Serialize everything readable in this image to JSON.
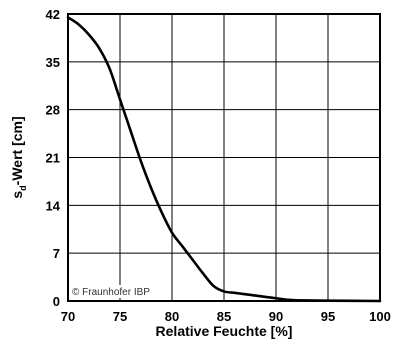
{
  "chart_data": {
    "type": "line",
    "xlabel": "Relative Feuchte [%]",
    "ylabel": {
      "main": "s",
      "sub": "d",
      "rest": "-Wert [cm]"
    },
    "xlim": [
      70,
      100
    ],
    "ylim": [
      0,
      42
    ],
    "xticks": [
      70,
      75,
      80,
      85,
      90,
      95,
      100
    ],
    "yticks": [
      0,
      7,
      14,
      21,
      28,
      35,
      42
    ],
    "grid": true,
    "annotation": "© Fraunhofer IBP",
    "series": [
      {
        "x": [
          70,
          71,
          72,
          73,
          74,
          75,
          76,
          77,
          78,
          79,
          80,
          81,
          82,
          83,
          84,
          85,
          86,
          87,
          88,
          89,
          90,
          91,
          92,
          95,
          100
        ],
        "y": [
          41.5,
          40.5,
          39.0,
          37.0,
          34.0,
          29.5,
          25.0,
          20.5,
          16.5,
          13.0,
          10.0,
          8.0,
          6.0,
          4.0,
          2.2,
          1.4,
          1.2,
          1.0,
          0.8,
          0.6,
          0.4,
          0.2,
          0.1,
          0.05,
          0.0
        ],
        "color": "#000000"
      }
    ]
  }
}
